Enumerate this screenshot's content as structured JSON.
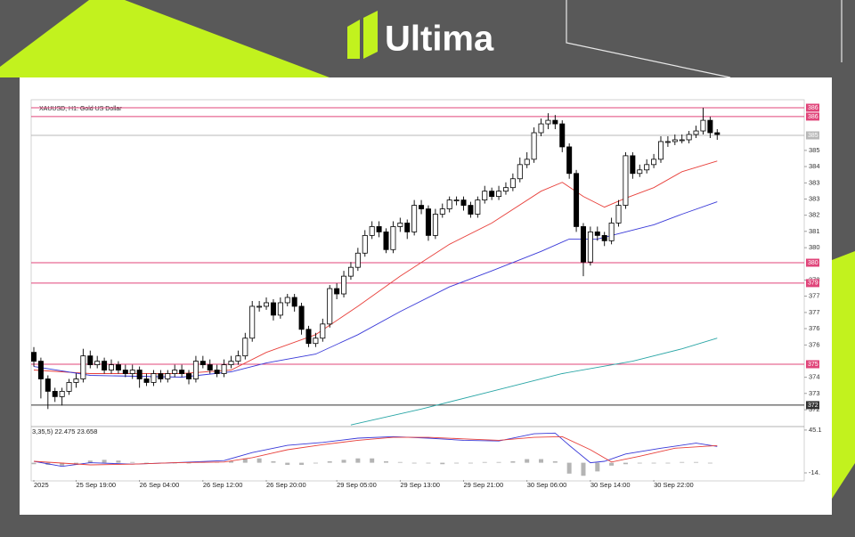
{
  "header": {
    "logo": "Ultima"
  },
  "chart_data": {
    "type": "candlestick",
    "title": "XAUUSD, H1:  Gold US Dollar",
    "categories": [
      "2025",
      null,
      null,
      null,
      null,
      null,
      "25 Sep 19:00",
      null,
      null,
      null,
      null,
      null,
      null,
      null,
      null,
      "26 Sep 04:00",
      null,
      null,
      null,
      null,
      null,
      null,
      null,
      null,
      "26 Sep 12:00",
      null,
      null,
      null,
      null,
      null,
      null,
      null,
      null,
      "26 Sep 20:00",
      null,
      null,
      null,
      null,
      null,
      null,
      null,
      null,
      null,
      "29 Sep 05:00",
      null,
      null,
      null,
      null,
      null,
      null,
      null,
      null,
      "29 Sep 13:00",
      null,
      null,
      null,
      null,
      null,
      null,
      null,
      null,
      "29 Sep 21:00",
      null,
      null,
      null,
      null,
      null,
      null,
      null,
      null,
      "30 Sep 06:00",
      null,
      null,
      null,
      null,
      null,
      null,
      null,
      null,
      "30 Sep 14:00",
      null,
      null,
      null,
      null,
      null,
      null,
      null,
      null,
      "30 Sep 22:00",
      null,
      null,
      null,
      null,
      null,
      null,
      null,
      null,
      null
    ],
    "open": [
      3742,
      3737,
      3727,
      3720,
      3717,
      3720,
      3725,
      3727,
      3740,
      3735,
      3737,
      3732,
      3735,
      3732,
      3730,
      3732,
      3727,
      3725,
      3730,
      3727,
      3730,
      3732,
      3730,
      3727,
      3737,
      3735,
      3732,
      3730,
      3735,
      3737,
      3740,
      3750,
      3768,
      3768,
      3770,
      3763,
      3770,
      3773,
      3768,
      3755,
      3747,
      3750,
      3758,
      3778,
      3775,
      3785,
      3790,
      3798,
      3808,
      3813,
      3810,
      3800,
      3813,
      3815,
      3810,
      3825,
      3823,
      3808,
      3820,
      3823,
      3828,
      3828,
      3825,
      3820,
      3828,
      3833,
      3830,
      3833,
      3835,
      3840,
      3848,
      3851,
      3866,
      3871,
      3873,
      3871,
      3858,
      3843,
      3813,
      3793,
      3810,
      3808,
      3805,
      3815,
      3825,
      3853,
      3843,
      3845,
      3848,
      3851,
      3861,
      3861,
      3862,
      3862,
      3865,
      3867,
      3873,
      3866
    ],
    "high": [
      3745,
      3739,
      3729,
      3722,
      3722,
      3727,
      3730,
      3744,
      3743,
      3740,
      3739,
      3738,
      3737,
      3735,
      3735,
      3734,
      3730,
      3732,
      3732,
      3732,
      3735,
      3735,
      3732,
      3740,
      3740,
      3738,
      3735,
      3738,
      3740,
      3743,
      3753,
      3771,
      3771,
      3773,
      3772,
      3773,
      3775,
      3775,
      3770,
      3757,
      3753,
      3761,
      3780,
      3781,
      3788,
      3793,
      3801,
      3811,
      3816,
      3816,
      3812,
      3816,
      3818,
      3817,
      3828,
      3828,
      3825,
      3823,
      3826,
      3830,
      3830,
      3830,
      3827,
      3830,
      3836,
      3835,
      3836,
      3838,
      3843,
      3852,
      3855,
      3869,
      3874,
      3877,
      3876,
      3873,
      3860,
      3845,
      3815,
      3813,
      3813,
      3810,
      3818,
      3828,
      3855,
      3855,
      3848,
      3851,
      3854,
      3864,
      3864,
      3865,
      3865,
      3867,
      3870,
      3880,
      3875,
      3868
    ],
    "low": [
      3734,
      3716,
      3710,
      3714,
      3712,
      3718,
      3722,
      3725,
      3733,
      3733,
      3730,
      3730,
      3730,
      3728,
      3727,
      3722,
      3723,
      3723,
      3725,
      3725,
      3728,
      3728,
      3724,
      3725,
      3733,
      3730,
      3728,
      3728,
      3733,
      3735,
      3738,
      3748,
      3765,
      3766,
      3760,
      3761,
      3768,
      3765,
      3752,
      3745,
      3745,
      3748,
      3756,
      3772,
      3773,
      3783,
      3788,
      3796,
      3806,
      3807,
      3798,
      3798,
      3810,
      3806,
      3808,
      3820,
      3805,
      3806,
      3818,
      3821,
      3825,
      3822,
      3818,
      3818,
      3826,
      3828,
      3828,
      3831,
      3833,
      3838,
      3846,
      3849,
      3864,
      3868,
      3868,
      3855,
      3840,
      3810,
      3785,
      3791,
      3805,
      3802,
      3803,
      3813,
      3823,
      3840,
      3841,
      3843,
      3846,
      3849,
      3858,
      3859,
      3860,
      3860,
      3863,
      3865,
      3863,
      3862
    ],
    "close": [
      3737,
      3727,
      3720,
      3717,
      3720,
      3725,
      3727,
      3740,
      3735,
      3737,
      3732,
      3735,
      3732,
      3730,
      3732,
      3727,
      3725,
      3730,
      3727,
      3730,
      3732,
      3730,
      3727,
      3737,
      3735,
      3732,
      3730,
      3735,
      3737,
      3740,
      3750,
      3768,
      3768,
      3770,
      3763,
      3770,
      3773,
      3768,
      3755,
      3747,
      3750,
      3758,
      3778,
      3775,
      3785,
      3790,
      3798,
      3808,
      3813,
      3810,
      3800,
      3813,
      3815,
      3810,
      3825,
      3823,
      3808,
      3820,
      3823,
      3828,
      3828,
      3825,
      3820,
      3828,
      3833,
      3830,
      3833,
      3835,
      3840,
      3848,
      3851,
      3866,
      3871,
      3873,
      3871,
      3858,
      3843,
      3813,
      3793,
      3810,
      3808,
      3805,
      3815,
      3825,
      3853,
      3843,
      3845,
      3848,
      3851,
      3861,
      3861,
      3862,
      3862,
      3865,
      3867,
      3873,
      3866,
      3865
    ],
    "up_color": "#ffffff",
    "down_color": "#000000",
    "ylim": [
      3700.6,
      3882.1
    ],
    "yticks": [
      {
        "value": 3856,
        "label": "385"
      },
      {
        "value": 3846.9,
        "label": "384"
      },
      {
        "value": 3837.7,
        "label": "383"
      },
      {
        "value": 3828.6,
        "label": "383"
      },
      {
        "value": 3819.4,
        "label": "382"
      },
      {
        "value": 3810.3,
        "label": "381"
      },
      {
        "value": 3801.1,
        "label": "380"
      },
      {
        "value": 3782.8,
        "label": "378"
      },
      {
        "value": 3773.7,
        "label": "377"
      },
      {
        "value": 3764.5,
        "label": "377"
      },
      {
        "value": 3755.4,
        "label": "376"
      },
      {
        "value": 3746.2,
        "label": "376"
      },
      {
        "value": 3727.9,
        "label": "374"
      },
      {
        "value": 3718.8,
        "label": "373"
      },
      {
        "value": 3709.6,
        "label": "372"
      }
    ],
    "series": [
      {
        "color": "#e8413c",
        "x": [
          0,
          8,
          21,
          28,
          33,
          40,
          46,
          52,
          59,
          65,
          72,
          75,
          78,
          81,
          84,
          88,
          92,
          97
        ],
        "values": [
          3732,
          3730,
          3730,
          3732,
          3742,
          3752,
          3768,
          3785,
          3803,
          3815,
          3833,
          3838,
          3830,
          3824,
          3829,
          3835,
          3844,
          3850
        ]
      },
      {
        "color": "#3a3ad8",
        "x": [
          0,
          8,
          21,
          28,
          33,
          40,
          46,
          52,
          59,
          65,
          72,
          76,
          80,
          84,
          88,
          92,
          97
        ],
        "values": [
          3734,
          3729,
          3728,
          3731,
          3736,
          3741,
          3752,
          3765,
          3779,
          3788,
          3799,
          3806,
          3806,
          3810,
          3814,
          3820,
          3827
        ]
      },
      {
        "color": "#2aa6a6",
        "x": [
          45,
          55,
          65,
          75,
          85,
          92,
          97
        ],
        "values": [
          3701,
          3710,
          3720,
          3730,
          3737,
          3744,
          3750
        ]
      }
    ],
    "levels": [
      {
        "value": 3880.1,
        "label": "386",
        "color": "#e0457a"
      },
      {
        "value": 3875.1,
        "label": "386",
        "color": "#e0457a"
      },
      {
        "value": 3864.5,
        "label": "385",
        "color": "#b8b8b8"
      },
      {
        "value": 3792.6,
        "label": "380",
        "color": "#e0457a"
      },
      {
        "value": 3781.1,
        "label": "379",
        "color": "#e0457a"
      },
      {
        "value": 3735.3,
        "label": "375",
        "color": "#e0457a"
      },
      {
        "value": 3712.2,
        "label": "372",
        "color": "#333333"
      }
    ],
    "indicator": {
      "type": "macd",
      "label": "3,35,5) 22.475 23.658",
      "ylim": [
        -26.3,
        48.7
      ],
      "yticks": [
        45.1,
        {
          "value": -14,
          "label": "-14."
        }
      ],
      "histogram": {
        "color": "#b4b4b4",
        "x": [
          0,
          2,
          4,
          6,
          8,
          10,
          12,
          14,
          16,
          18,
          20,
          22,
          24,
          26,
          28,
          30,
          32,
          34,
          36,
          38,
          40,
          42,
          44,
          46,
          48,
          50,
          52,
          54,
          56,
          58,
          60,
          62,
          64,
          66,
          68,
          70,
          72,
          74,
          76,
          78,
          80,
          82,
          84,
          86,
          88,
          90,
          92,
          94,
          96
        ],
        "values": [
          -2,
          -3,
          -4,
          -3,
          3,
          4,
          3,
          1,
          0,
          0,
          -1,
          0,
          1,
          1,
          2,
          6,
          6,
          2,
          -3,
          -3,
          -1,
          2,
          4,
          6,
          6,
          2,
          1,
          -1,
          -1,
          -2,
          -1,
          0,
          1,
          1,
          2,
          5,
          5,
          2,
          -15,
          -18,
          -12,
          -4,
          -2,
          -1,
          -1,
          0,
          1,
          1,
          0
        ]
      },
      "series": [
        {
          "color": "#3a3ad8",
          "x": [
            0,
            4,
            8,
            14,
            20,
            27,
            31,
            36,
            41,
            46,
            51,
            56,
            61,
            66,
            71,
            74,
            76,
            79,
            81,
            84,
            89,
            94,
            97
          ],
          "values": [
            2,
            -5,
            0,
            -2,
            0,
            3,
            14,
            24,
            28,
            34,
            36,
            34,
            31,
            30,
            40,
            41,
            24,
            0,
            2,
            12,
            20,
            27,
            22.5
          ]
        },
        {
          "color": "#e8413c",
          "x": [
            0,
            8,
            14,
            20,
            27,
            31,
            36,
            41,
            46,
            51,
            56,
            61,
            66,
            71,
            75,
            79,
            82,
            86,
            91,
            97
          ],
          "values": [
            2,
            -3,
            -2,
            0,
            1,
            7,
            18,
            25,
            31,
            35,
            35,
            33,
            31,
            35,
            36,
            18,
            1,
            9,
            20,
            23.7
          ]
        }
      ]
    }
  }
}
